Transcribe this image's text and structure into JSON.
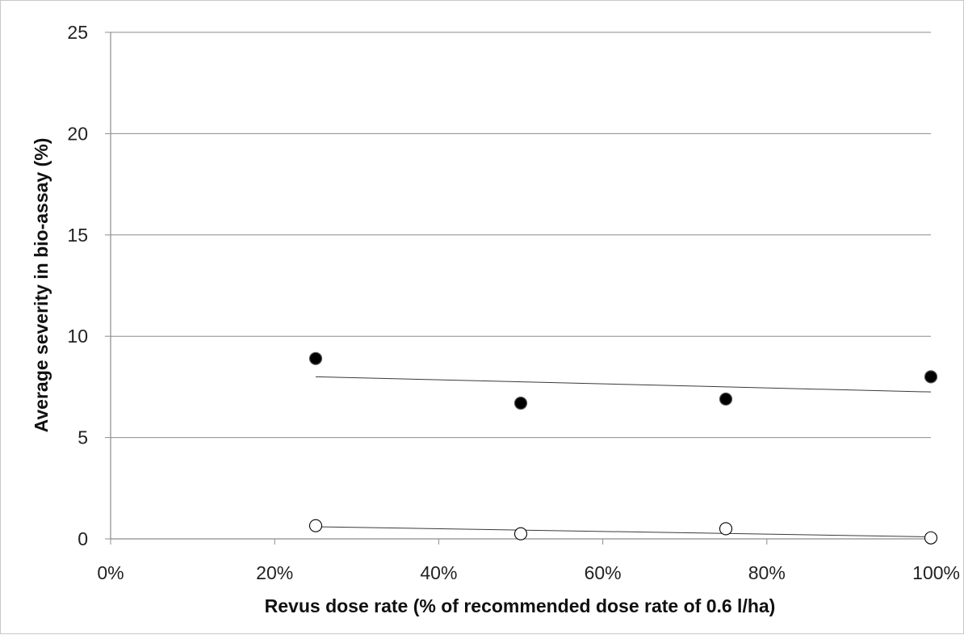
{
  "chart_data": {
    "type": "scatter",
    "title": "",
    "xlabel": "Revus dose rate (% of recommended dose rate of 0.6 l/ha)",
    "ylabel": "Average severity in bio-assay (%)",
    "xlim": [
      0,
      100
    ],
    "ylim": [
      0,
      25
    ],
    "x_ticks": [
      0,
      20,
      40,
      60,
      80,
      100
    ],
    "x_tick_labels": [
      "0%",
      "20%",
      "40%",
      "60%",
      "80%",
      "100%"
    ],
    "y_ticks": [
      0,
      5,
      10,
      15,
      20,
      25
    ],
    "y_tick_labels": [
      "0",
      "5",
      "10",
      "15",
      "20",
      "25"
    ],
    "grid": "horizontal",
    "legend": "none",
    "series": [
      {
        "marker": "filled-circle",
        "color": "#000000",
        "x": [
          25,
          50,
          75,
          100
        ],
        "y": [
          8.9,
          6.7,
          6.9,
          8.0
        ],
        "trendline": {
          "x": [
            25,
            100
          ],
          "y": [
            8.0,
            7.25
          ]
        }
      },
      {
        "marker": "open-circle",
        "color": "#000000",
        "x": [
          25,
          50,
          75,
          100
        ],
        "y": [
          0.65,
          0.25,
          0.5,
          0.05
        ],
        "trendline": {
          "x": [
            25,
            100
          ],
          "y": [
            0.6,
            0.1
          ]
        }
      }
    ]
  }
}
